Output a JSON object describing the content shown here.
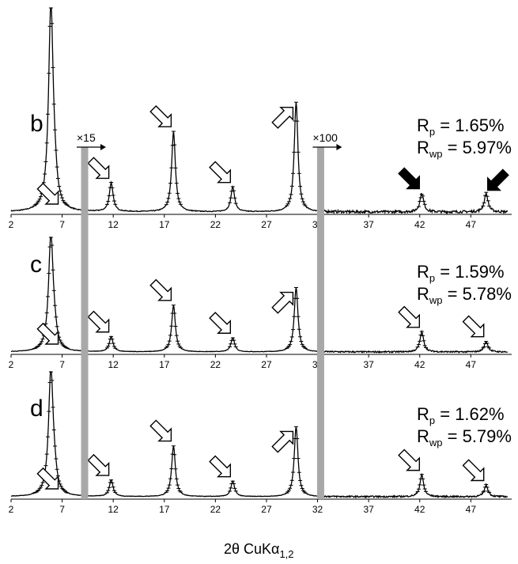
{
  "chart_data": {
    "type": "line",
    "xlabel": "2θ CuKα",
    "xlabel_sub": "1,2",
    "xlim": [
      2,
      51
    ],
    "xticks": [
      2,
      7,
      12,
      17,
      22,
      27,
      32,
      37,
      42,
      47
    ],
    "xtick_labels": [
      "2",
      "7",
      "12",
      "17",
      "22",
      "27",
      "32",
      "37",
      "42",
      "47"
    ],
    "scale_factors": [
      {
        "label": "×15",
        "from_2theta": 9.2
      },
      {
        "label": "×100",
        "from_2theta": 32.3
      }
    ],
    "gray_bars_2theta": [
      9.2,
      32.3
    ],
    "peaks_2theta": [
      5.9,
      6.3,
      11.8,
      17.9,
      23.7,
      29.9,
      42.2,
      48.5
    ],
    "panels": [
      {
        "label": "b",
        "rp_prefix": "R",
        "rp_sub": "p",
        "rp_value": " = 1.65%",
        "rwp_prefix": "R",
        "rwp_sub": "wp",
        "rwp_value": " = 5.97%",
        "peak_heights": [
          1.0,
          0.07,
          0.14,
          0.39,
          0.12,
          0.53,
          0.09,
          0.09
        ],
        "hollow_arrows": [
          6.3,
          11.8,
          17.9,
          23.7,
          29.9
        ],
        "filled_arrows": [
          42.2,
          48.5
        ]
      },
      {
        "label": "c",
        "rp_prefix": "R",
        "rp_sub": "p",
        "rp_value": " = 1.59%",
        "rwp_prefix": "R",
        "rwp_sub": "wp",
        "rwp_value": " = 5.78%",
        "peak_heights": [
          1.0,
          0.07,
          0.13,
          0.4,
          0.12,
          0.55,
          0.17,
          0.09
        ],
        "hollow_arrows": [
          6.3,
          11.8,
          17.9,
          23.7,
          29.9,
          42.2,
          48.5
        ],
        "filled_arrows": []
      },
      {
        "label": "d",
        "rp_prefix": "R",
        "rp_sub": "p",
        "rp_value": " = 1.62%",
        "rwp_prefix": "R",
        "rwp_sub": "wp",
        "rwp_value": " = 5.79%",
        "peak_heights": [
          1.0,
          0.07,
          0.13,
          0.4,
          0.12,
          0.55,
          0.17,
          0.09
        ],
        "hollow_arrows": [
          6.3,
          11.8,
          17.9,
          23.7,
          29.9,
          42.2,
          48.5
        ],
        "filled_arrows": []
      }
    ],
    "grid": false,
    "legend": "none"
  }
}
